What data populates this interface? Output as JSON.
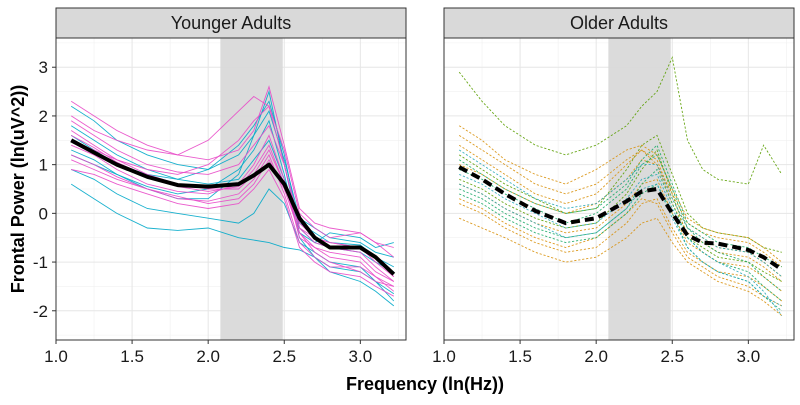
{
  "chart_data": {
    "type": "line",
    "ylabel": "Frontal Power (ln(uV^2))",
    "xlabel": "Frequency (ln(Hz))",
    "xlim": [
      1.0,
      3.3
    ],
    "ylim": [
      -2.6,
      3.6
    ],
    "x_ticks": [
      1.0,
      1.5,
      2.0,
      2.5,
      3.0
    ],
    "x_tick_labels": [
      "1.0",
      "1.5",
      "2.0",
      "2.5",
      "3.0"
    ],
    "y_ticks": [
      -2,
      -1,
      0,
      1,
      2,
      3
    ],
    "y_tick_labels": [
      "-2",
      "-1",
      "0",
      "1",
      "2",
      "3"
    ],
    "highlight_band": [
      2.08,
      2.49
    ],
    "grid": true,
    "panels": [
      {
        "title": "Younger Adults",
        "line_style": "solid",
        "mean_series": {
          "x": [
            1.1,
            1.25,
            1.4,
            1.6,
            1.8,
            2.0,
            2.2,
            2.3,
            2.4,
            2.5,
            2.6,
            2.7,
            2.8,
            3.0,
            3.1,
            3.22
          ],
          "values": [
            1.5,
            1.25,
            1.0,
            0.75,
            0.58,
            0.55,
            0.6,
            0.78,
            1.0,
            0.6,
            -0.1,
            -0.5,
            -0.7,
            -0.7,
            -0.9,
            -1.25
          ]
        },
        "series": [
          {
            "color": "#00A9C9",
            "values": [
              0.6,
              0.3,
              0.0,
              -0.3,
              -0.35,
              -0.3,
              -0.5,
              -0.55,
              -0.6,
              -0.7,
              -0.75,
              -0.9,
              -1.1,
              -1.2,
              -1.4,
              -1.65
            ]
          },
          {
            "color": "#00A9C9",
            "values": [
              1.6,
              1.3,
              1.0,
              0.8,
              0.7,
              0.9,
              1.4,
              1.8,
              2.3,
              1.2,
              -0.3,
              -0.6,
              -0.7,
              -0.8,
              -1.0,
              -1.2
            ]
          },
          {
            "color": "#00A9C9",
            "values": [
              1.2,
              1.0,
              0.8,
              0.5,
              0.3,
              0.3,
              0.8,
              1.6,
              2.5,
              1.0,
              -0.4,
              -0.6,
              -0.4,
              -0.5,
              -0.7,
              -0.6
            ]
          },
          {
            "color": "#00A9C9",
            "values": [
              0.9,
              0.7,
              0.4,
              0.1,
              0.0,
              -0.1,
              -0.2,
              0.0,
              0.5,
              0.2,
              -0.6,
              -0.8,
              -1.0,
              -1.1,
              -1.4,
              -1.8
            ]
          },
          {
            "color": "#00A9C9",
            "values": [
              2.2,
              1.9,
              1.5,
              1.2,
              1.0,
              0.9,
              1.2,
              1.6,
              2.1,
              1.1,
              -0.1,
              -0.3,
              -0.5,
              -0.6,
              -0.8,
              -0.9
            ]
          },
          {
            "color": "#00A9C9",
            "values": [
              1.3,
              1.1,
              0.8,
              0.55,
              0.4,
              0.5,
              0.9,
              1.3,
              1.9,
              0.8,
              -0.5,
              -0.9,
              -1.2,
              -1.4,
              -1.6,
              -1.9
            ]
          },
          {
            "color": "#00A9C9",
            "values": [
              1.8,
              1.5,
              1.2,
              0.9,
              0.7,
              0.6,
              0.7,
              1.1,
              1.5,
              0.7,
              -0.2,
              -0.4,
              -0.6,
              -0.65,
              -0.9,
              -1.1
            ]
          },
          {
            "color": "#E84AC8",
            "values": [
              2.0,
              1.7,
              1.5,
              1.3,
              1.2,
              1.5,
              2.1,
              2.4,
              2.2,
              1.3,
              0.0,
              -0.3,
              -0.5,
              -0.4,
              -0.6,
              -0.9
            ]
          },
          {
            "color": "#E84AC8",
            "values": [
              1.5,
              1.3,
              1.1,
              0.9,
              0.8,
              1.0,
              1.5,
              1.9,
              2.2,
              1.0,
              -0.3,
              -0.5,
              -0.6,
              -0.7,
              -0.9,
              -1.3
            ]
          },
          {
            "color": "#E84AC8",
            "values": [
              1.1,
              0.9,
              0.7,
              0.5,
              0.35,
              0.2,
              0.3,
              0.6,
              1.1,
              0.5,
              -0.4,
              -0.8,
              -1.0,
              -1.2,
              -1.4,
              -1.5
            ]
          },
          {
            "color": "#E84AC8",
            "values": [
              1.7,
              1.4,
              1.1,
              0.8,
              0.6,
              0.5,
              0.5,
              0.8,
              1.3,
              0.6,
              -0.3,
              -0.6,
              -0.7,
              -0.8,
              -1.1,
              -1.4
            ]
          },
          {
            "color": "#E84AC8",
            "values": [
              1.4,
              1.2,
              0.9,
              0.6,
              0.45,
              0.4,
              0.6,
              1.0,
              1.6,
              0.7,
              -0.5,
              -0.7,
              -0.9,
              -1.0,
              -1.3,
              -1.6
            ]
          },
          {
            "color": "#E84AC8",
            "values": [
              2.3,
              2.0,
              1.7,
              1.4,
              1.2,
              1.1,
              1.3,
              1.7,
              2.6,
              1.4,
              0.1,
              -0.2,
              -0.3,
              -0.4,
              -0.6,
              -0.7
            ]
          },
          {
            "color": "#E84AC8",
            "values": [
              0.9,
              0.8,
              0.6,
              0.4,
              0.2,
              0.1,
              0.2,
              0.5,
              0.9,
              0.3,
              -0.7,
              -1.0,
              -1.2,
              -1.3,
              -1.5,
              -1.7
            ]
          },
          {
            "color": "#E84AC8",
            "values": [
              1.9,
              1.6,
              1.3,
              1.0,
              0.85,
              0.8,
              1.0,
              1.4,
              1.8,
              1.0,
              -0.2,
              -0.5,
              -0.6,
              -0.7,
              -1.0,
              -1.3
            ]
          },
          {
            "color": "#E84AC8",
            "values": [
              1.2,
              1.0,
              0.75,
              0.5,
              0.3,
              0.25,
              0.4,
              0.7,
              1.2,
              0.4,
              -0.6,
              -0.9,
              -1.1,
              -1.1,
              -1.3,
              -1.5
            ]
          },
          {
            "color": "#E84AC8",
            "values": [
              1.6,
              1.35,
              1.05,
              0.75,
              0.55,
              0.45,
              0.55,
              0.9,
              1.4,
              0.6,
              -0.4,
              -0.7,
              -0.8,
              -0.9,
              -1.2,
              -1.4
            ]
          }
        ]
      },
      {
        "title": "Older Adults",
        "line_style": "dashed",
        "mean_series": {
          "x": [
            1.1,
            1.25,
            1.4,
            1.6,
            1.8,
            2.0,
            2.2,
            2.3,
            2.4,
            2.5,
            2.6,
            2.7,
            2.8,
            3.0,
            3.1,
            3.22
          ],
          "values": [
            0.95,
            0.7,
            0.4,
            0.05,
            -0.2,
            -0.1,
            0.25,
            0.45,
            0.5,
            0.0,
            -0.45,
            -0.6,
            -0.62,
            -0.75,
            -0.9,
            -1.15
          ]
        },
        "series": [
          {
            "color": "#5A9E00",
            "values": [
              2.9,
              2.3,
              1.8,
              1.4,
              1.2,
              1.4,
              1.8,
              2.2,
              2.5,
              3.2,
              1.5,
              0.9,
              0.7,
              0.6,
              1.4,
              0.8
            ]
          },
          {
            "color": "#5A9E00",
            "values": [
              1.2,
              0.9,
              0.6,
              0.3,
              0.0,
              0.1,
              0.9,
              1.4,
              1.6,
              0.8,
              0.0,
              -0.3,
              -0.4,
              -0.5,
              -0.7,
              -0.8
            ]
          },
          {
            "color": "#5A9E00",
            "values": [
              0.7,
              0.5,
              0.2,
              -0.1,
              -0.3,
              -0.2,
              0.4,
              0.9,
              1.3,
              0.4,
              -0.5,
              -0.7,
              -0.9,
              -1.0,
              -1.2,
              -1.4
            ]
          },
          {
            "color": "#D8900A",
            "values": [
              1.8,
              1.5,
              1.1,
              0.8,
              0.6,
              0.9,
              1.3,
              1.4,
              1.2,
              0.5,
              -0.1,
              -0.3,
              -0.4,
              -0.5,
              -0.7,
              -1.0
            ]
          },
          {
            "color": "#D8900A",
            "values": [
              1.4,
              1.1,
              0.8,
              0.4,
              0.2,
              0.4,
              1.0,
              1.3,
              1.1,
              0.3,
              -0.3,
              -0.5,
              -0.7,
              -0.8,
              -1.0,
              -1.3
            ]
          },
          {
            "color": "#D8900A",
            "values": [
              0.3,
              0.1,
              -0.2,
              -0.5,
              -0.7,
              -0.5,
              0.0,
              0.3,
              0.2,
              -0.4,
              -0.9,
              -1.1,
              -1.3,
              -1.5,
              -1.7,
              -1.9
            ]
          },
          {
            "color": "#D8900A",
            "values": [
              1.0,
              0.8,
              0.5,
              0.2,
              0.0,
              0.2,
              0.7,
              1.1,
              1.0,
              0.2,
              -0.4,
              -0.6,
              -0.8,
              -0.9,
              -1.1,
              -1.4
            ]
          },
          {
            "color": "#D8900A",
            "values": [
              0.6,
              0.4,
              0.1,
              -0.2,
              -0.4,
              -0.3,
              0.2,
              0.6,
              0.7,
              0.0,
              -0.6,
              -0.8,
              -1.0,
              -1.1,
              -1.3,
              -1.6
            ]
          },
          {
            "color": "#D8900A",
            "values": [
              -0.1,
              -0.3,
              -0.5,
              -0.8,
              -1.0,
              -0.9,
              -0.5,
              -0.2,
              -0.1,
              -0.6,
              -1.0,
              -1.2,
              -1.4,
              -1.6,
              -1.8,
              -2.1
            ]
          },
          {
            "color": "#D8900A",
            "values": [
              1.6,
              1.3,
              1.0,
              0.6,
              0.4,
              0.6,
              1.1,
              1.3,
              1.0,
              0.4,
              -0.2,
              -0.4,
              -0.5,
              -0.6,
              -0.8,
              -1.1
            ]
          },
          {
            "color": "#D8900A",
            "values": [
              0.2,
              0.0,
              -0.3,
              -0.6,
              -0.8,
              -0.7,
              -0.2,
              0.2,
              0.3,
              -0.3,
              -0.8,
              -1.0,
              -1.2,
              -1.3,
              -1.5,
              -1.8
            ]
          },
          {
            "color": "#1AAA66",
            "values": [
              0.9,
              0.7,
              0.4,
              0.1,
              -0.2,
              0.0,
              0.5,
              1.0,
              1.2,
              0.5,
              -0.3,
              -0.6,
              -0.8,
              -1.0,
              -1.3,
              -1.6
            ]
          },
          {
            "color": "#1AAA66",
            "values": [
              0.5,
              0.3,
              0.0,
              -0.3,
              -0.5,
              -0.4,
              0.1,
              0.6,
              0.9,
              0.2,
              -0.5,
              -0.8,
              -1.0,
              -1.2,
              -1.5,
              -1.8
            ]
          },
          {
            "color": "#1AAA66",
            "values": [
              0.4,
              0.2,
              -0.1,
              -0.4,
              -0.6,
              -0.5,
              0.0,
              0.4,
              0.6,
              0.0,
              -0.7,
              -1.0,
              -1.2,
              -1.4,
              -1.7,
              -2.0
            ]
          },
          {
            "color": "#1AAA66",
            "values": [
              1.1,
              0.8,
              0.5,
              0.2,
              0.0,
              0.1,
              0.6,
              1.1,
              1.4,
              0.6,
              -0.2,
              -0.4,
              -0.6,
              -0.7,
              -0.9,
              -1.1
            ]
          },
          {
            "color": "#2AA8B8",
            "values": [
              0.8,
              0.6,
              0.3,
              0.0,
              -0.3,
              -0.2,
              0.3,
              0.7,
              0.8,
              0.1,
              -0.5,
              -0.8,
              -1.0,
              -1.3,
              -1.6,
              -2.1
            ]
          },
          {
            "color": "#2AA8B8",
            "values": [
              0.6,
              0.4,
              0.1,
              -0.2,
              -0.5,
              -0.4,
              0.1,
              0.5,
              0.6,
              -0.1,
              -0.7,
              -1.0,
              -1.2,
              -1.4,
              -1.7,
              -1.9
            ]
          },
          {
            "color": "#2AA8B8",
            "values": [
              1.3,
              1.0,
              0.7,
              0.3,
              0.1,
              0.2,
              0.7,
              1.0,
              1.0,
              0.3,
              -0.3,
              -0.5,
              -0.7,
              -0.8,
              -1.0,
              -1.3
            ]
          }
        ]
      }
    ]
  }
}
